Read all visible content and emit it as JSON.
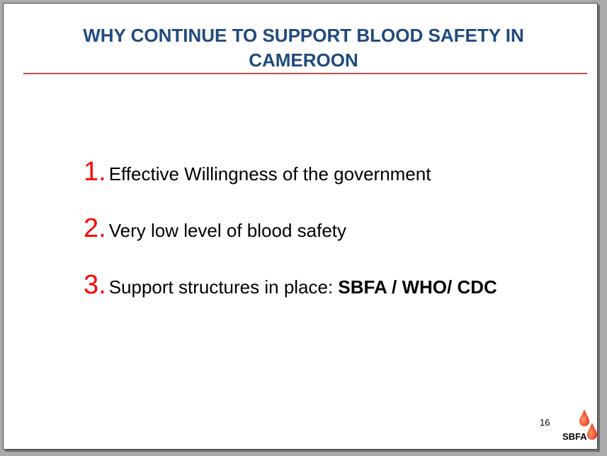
{
  "slide": {
    "title_line1": "WHY CONTINUE TO SUPPORT BLOOD SAFETY IN",
    "title_line2": "CAMEROON",
    "items": [
      {
        "number": "1.",
        "text": "Effective Willingness of the government",
        "bold": ""
      },
      {
        "number": "2.",
        "text": "Very low level of blood safety",
        "bold": ""
      },
      {
        "number": "3.",
        "text": "Support structures in place: ",
        "bold": "SBFA / WHO/ CDC"
      }
    ],
    "page_number": "16",
    "logo_text": "SBFA"
  },
  "colors": {
    "title": "#1f4a7e",
    "rule": "#c0504d",
    "number": "#ff0000",
    "drop": "#e8321e"
  }
}
